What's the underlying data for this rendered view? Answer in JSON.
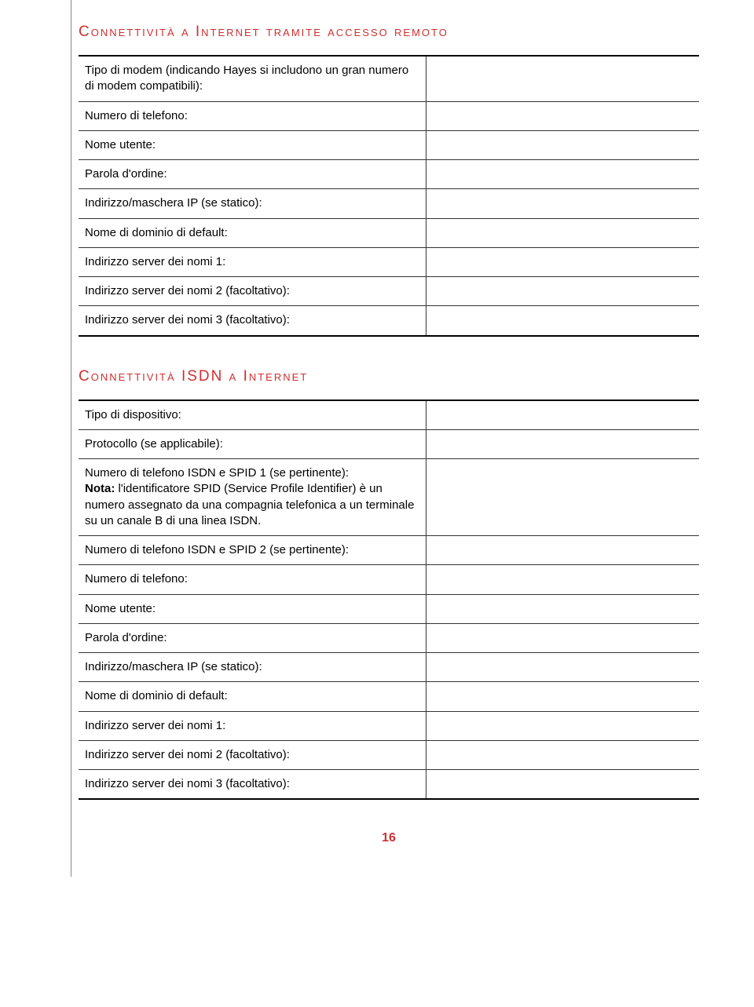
{
  "colors": {
    "heading": "#d02f2f",
    "page_number": "#d02f2f",
    "border": "#000000",
    "text": "#000000"
  },
  "section1": {
    "heading": "Connettività a Internet tramite accesso remoto",
    "rows": [
      {
        "label": "Tipo di modem (indicando Hayes si includono un gran numero di modem compatibili):",
        "value": ""
      },
      {
        "label": "Numero di telefono:",
        "value": ""
      },
      {
        "label": "Nome utente:",
        "value": ""
      },
      {
        "label": "Parola d'ordine:",
        "value": ""
      },
      {
        "label": "Indirizzo/maschera IP (se statico):",
        "value": ""
      },
      {
        "label": "Nome di dominio di default:",
        "value": ""
      },
      {
        "label": "Indirizzo server dei nomi 1:",
        "value": ""
      },
      {
        "label": "Indirizzo server dei nomi 2 (facoltativo):",
        "value": ""
      },
      {
        "label": "Indirizzo server dei nomi 3 (facoltativo):",
        "value": ""
      }
    ]
  },
  "section2": {
    "heading": "Connettività ISDN a Internet",
    "rows": [
      {
        "label": "Tipo di dispositivo:",
        "value": ""
      },
      {
        "label": "Protocollo (se applicabile):",
        "value": ""
      },
      {
        "label": "Numero di telefono ISDN e SPID 1 (se pertinente):",
        "nota_label": "Nota:",
        "nota_text": " l'identificatore SPID (Service Profile Identifier) è un numero assegnato da una compagnia telefonica a un terminale su un canale B di una linea ISDN.",
        "value": ""
      },
      {
        "label": "Numero di telefono ISDN e SPID 2 (se pertinente):",
        "value": ""
      },
      {
        "label": "Numero di telefono:",
        "value": ""
      },
      {
        "label": "Nome utente:",
        "value": ""
      },
      {
        "label": "Parola d'ordine:",
        "value": ""
      },
      {
        "label": "Indirizzo/maschera IP (se statico):",
        "value": ""
      },
      {
        "label": "Nome di dominio di default:",
        "value": ""
      },
      {
        "label": "Indirizzo server dei nomi 1:",
        "value": ""
      },
      {
        "label": "Indirizzo server dei nomi 2 (facoltativo):",
        "value": ""
      },
      {
        "label": "Indirizzo server dei nomi 3 (facoltativo):",
        "value": ""
      }
    ]
  },
  "page_number": "16"
}
